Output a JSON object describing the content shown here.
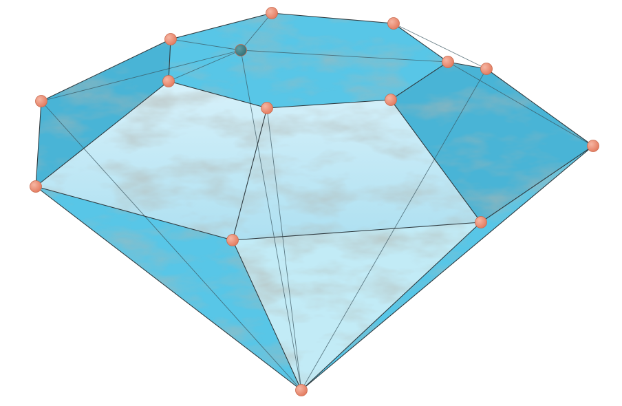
{
  "colors": {
    "background": "#ffffff",
    "face_main": "#4fc3e6",
    "face_dark": "#3fb0d4",
    "face_light": "#bfeaf6",
    "marble_vein": "#8a8f86",
    "edge": "#2f3b40",
    "vertex": "#e8836a",
    "vertex_highlight": "#f6b6a3",
    "vertex_hidden": "#3f7f86"
  }
}
